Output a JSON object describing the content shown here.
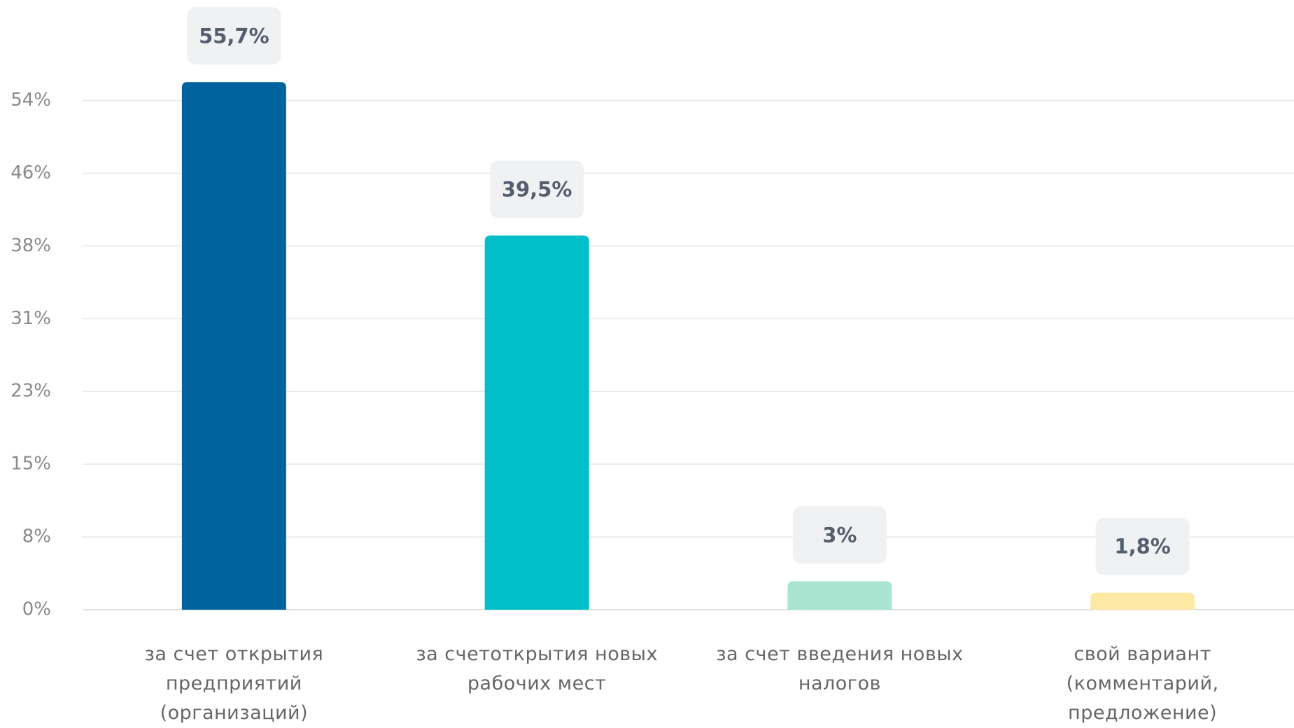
{
  "chart_data": {
    "type": "bar",
    "categories": [
      "за счет открытия предприятий (организаций)",
      "за счетоткрытия новых рабочих мест",
      "за счет введения новых налогов",
      "свой вариант (комментарий, предложение)"
    ],
    "values": [
      55.7,
      39.5,
      3,
      1.8
    ],
    "value_labels": [
      "55,7%",
      "39,5%",
      "3%",
      "1,8%"
    ],
    "colors": [
      "#00639e",
      "#00bfc9",
      "#a8e4d0",
      "#fde9a3"
    ],
    "ylim": [
      0,
      64
    ],
    "yticks": [
      {
        "value": 0,
        "label": "0%"
      },
      {
        "value": 7.68,
        "label": "8%"
      },
      {
        "value": 15.36,
        "label": "15%"
      },
      {
        "value": 23.04,
        "label": "23%"
      },
      {
        "value": 30.72,
        "label": "31%"
      },
      {
        "value": 38.4,
        "label": "38%"
      },
      {
        "value": 46.08,
        "label": "46%"
      },
      {
        "value": 53.76,
        "label": "54%"
      }
    ],
    "grid": true
  }
}
